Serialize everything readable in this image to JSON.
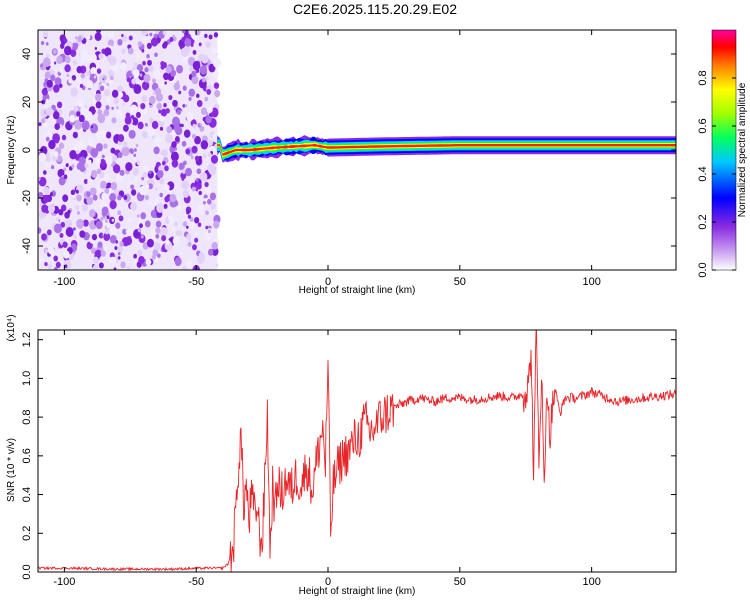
{
  "title": "C2E6.2025.115.20.29.E02",
  "chart_data": [
    {
      "type": "heatmap",
      "xlabel": "Height of straight line (km)",
      "ylabel": "Frequency (Hz)",
      "xlim": [
        -110,
        132
      ],
      "ylim": [
        -50,
        50
      ],
      "xticks": [
        -100,
        -50,
        0,
        50,
        100
      ],
      "yticks": [
        -40,
        -20,
        0,
        20,
        40
      ],
      "noise_region_x": [
        -110,
        -42
      ],
      "signal_band": {
        "x_start": -42,
        "x_end": 132,
        "center_frequency_hz": [
          [
            -40,
            -2
          ],
          [
            -35,
            0
          ],
          [
            -30,
            0
          ],
          [
            -20,
            1
          ],
          [
            -5,
            2
          ],
          [
            0,
            1
          ],
          [
            20,
            1.5
          ],
          [
            50,
            2
          ],
          [
            75,
            2
          ],
          [
            90,
            2
          ],
          [
            100,
            2
          ],
          [
            132,
            2
          ]
        ]
      },
      "colorbar": {
        "label": "Normalized spectral amplitude",
        "ticks": [
          0.0,
          0.2,
          0.4,
          0.6,
          0.8
        ],
        "range": [
          0,
          1
        ],
        "colors": [
          "#ffffff",
          "#8a2be2",
          "#0000ff",
          "#00ffff",
          "#00ff00",
          "#ffff00",
          "#ff0000",
          "#ff00ff"
        ]
      }
    },
    {
      "type": "line",
      "xlabel": "Height of straight line (km)",
      "ylabel": "SNR (10 * v/v)",
      "scale_note": "(x10⁴)",
      "xlim": [
        -110,
        132
      ],
      "ylim": [
        0,
        1.25
      ],
      "xticks": [
        -100,
        -50,
        0,
        50,
        100
      ],
      "yticks": [
        0.0,
        0.2,
        0.4,
        0.6,
        0.8,
        1.0,
        1.2
      ],
      "series": [
        {
          "color": "#e8262a",
          "x": [
            -110,
            -100,
            -80,
            -60,
            -45,
            -40,
            -38,
            -36,
            -35,
            -34,
            -33,
            -32,
            -31,
            -30,
            -29,
            -28,
            -27,
            -26,
            -25,
            -24,
            -23,
            -22,
            -21,
            -20,
            -19,
            -18,
            -16,
            -14,
            -12,
            -10,
            -8,
            -6,
            -4,
            -2,
            -1,
            0,
            1,
            2,
            4,
            6,
            8,
            10,
            12,
            14,
            16,
            18,
            20,
            25,
            30,
            35,
            40,
            45,
            50,
            55,
            60,
            65,
            70,
            74,
            76,
            77,
            78,
            79,
            80,
            81,
            82,
            83,
            84,
            86,
            88,
            90,
            95,
            100,
            110,
            120,
            132
          ],
          "y": [
            0.02,
            0.02,
            0.015,
            0.015,
            0.02,
            0.02,
            0.04,
            0.12,
            0.3,
            0.55,
            0.7,
            0.35,
            0.45,
            0.25,
            0.4,
            0.3,
            0.35,
            0.2,
            0.15,
            0.45,
            0.84,
            0.1,
            0.45,
            0.3,
            0.5,
            0.38,
            0.48,
            0.42,
            0.5,
            0.45,
            0.55,
            0.42,
            0.6,
            0.75,
            0.55,
            1.07,
            0.2,
            0.45,
            0.55,
            0.6,
            0.62,
            0.68,
            0.7,
            0.78,
            0.72,
            0.75,
            0.8,
            0.85,
            0.88,
            0.9,
            0.88,
            0.9,
            0.9,
            0.89,
            0.9,
            0.91,
            0.9,
            0.92,
            0.95,
            1.15,
            0.5,
            1.25,
            0.6,
            1.05,
            0.4,
            1.0,
            0.7,
            0.95,
            0.82,
            0.9,
            0.9,
            0.93,
            0.88,
            0.9,
            0.92
          ]
        }
      ]
    }
  ]
}
